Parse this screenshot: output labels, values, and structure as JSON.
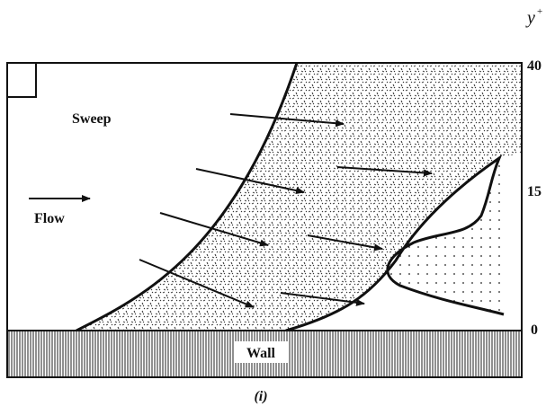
{
  "axis": {
    "label": "y",
    "superscript": "+",
    "ticks": [
      "40",
      "15",
      "0"
    ]
  },
  "labels": {
    "sweep": "Sweep",
    "flow": "Flow",
    "wall": "Wall"
  },
  "caption": "(i)"
}
